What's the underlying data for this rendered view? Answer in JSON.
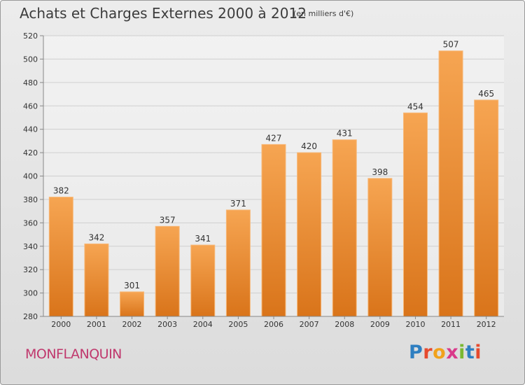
{
  "title": "Achats et Charges Externes 2000 à 2012",
  "subtitle": "(en milliers d'€)",
  "commune": "MONFLANQUIN",
  "logo": {
    "letters": [
      "P",
      "r",
      "o",
      "x",
      "i",
      "t",
      "i"
    ],
    "colors": [
      "#2e7fc1",
      "#e64a2e",
      "#f1a21b",
      "#d93a8a",
      "#7ab831",
      "#2e7fc1",
      "#e64a2e"
    ]
  },
  "colors": {
    "bar_top": "#f6a552",
    "bar_bottom": "#d9741a",
    "bar_edge": "#f7b878",
    "grid": "#cfcfcf",
    "axis_text": "#333333"
  },
  "chart_data": {
    "type": "bar",
    "title": "Achats et Charges Externes 2000 à 2012",
    "subtitle": "(en milliers d'€)",
    "categories": [
      "2000",
      "2001",
      "2002",
      "2003",
      "2004",
      "2005",
      "2006",
      "2007",
      "2008",
      "2009",
      "2010",
      "2011",
      "2012"
    ],
    "values": [
      382,
      342,
      301,
      357,
      341,
      371,
      427,
      420,
      431,
      398,
      454,
      507,
      465
    ],
    "ylim": [
      280,
      520
    ],
    "yticks": [
      280,
      300,
      320,
      340,
      360,
      380,
      400,
      420,
      440,
      460,
      480,
      500,
      520
    ],
    "grid": true,
    "data_labels": true
  }
}
